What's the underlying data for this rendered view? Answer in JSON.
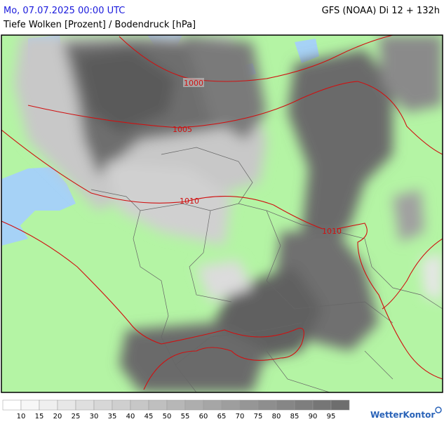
{
  "header": {
    "datetime": "Mo, 07.07.2025 00:00 UTC",
    "model": "GFS (NOAA) Di 12 + 132h",
    "subtitle": "Tiefe Wolken [Prozent] / Bodendruck [hPa]"
  },
  "map": {
    "isobars": [
      {
        "label": "1000"
      },
      {
        "label": "1005"
      },
      {
        "label": "1010"
      },
      {
        "label": "1010"
      }
    ]
  },
  "legend": {
    "labels": [
      10,
      15,
      20,
      25,
      30,
      35,
      40,
      45,
      50,
      55,
      60,
      65,
      70,
      75,
      80,
      85,
      90,
      95
    ]
  },
  "logo": "WetterKontor"
}
